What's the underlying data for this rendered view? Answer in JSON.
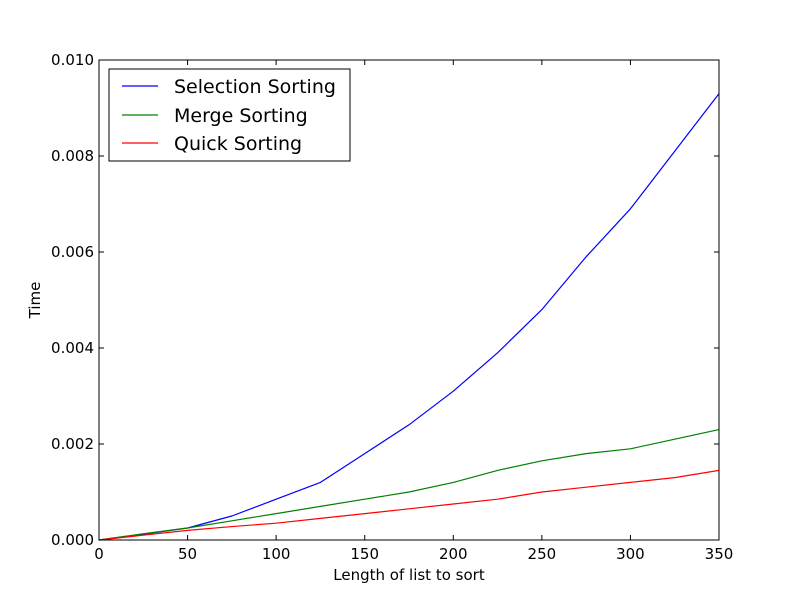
{
  "chart_data": {
    "type": "line",
    "title": "",
    "xlabel": "Length of list to sort",
    "ylabel": "Time",
    "xlim": [
      0,
      350
    ],
    "ylim": [
      0,
      0.01
    ],
    "grid": false,
    "legend_position": "top-left",
    "x_ticks": [
      "0",
      "50",
      "100",
      "150",
      "200",
      "250",
      "300",
      "350"
    ],
    "y_ticks": [
      "0.000",
      "0.002",
      "0.004",
      "0.006",
      "0.008",
      "0.010"
    ],
    "x": [
      0,
      25,
      50,
      75,
      100,
      125,
      150,
      175,
      200,
      225,
      250,
      275,
      300,
      325,
      350
    ],
    "series": [
      {
        "name": "Selection Sorting",
        "color": "#0000ff",
        "values": [
          0,
          0.00012,
          0.00025,
          0.0005,
          0.00085,
          0.0012,
          0.0018,
          0.0024,
          0.0031,
          0.0039,
          0.0048,
          0.0059,
          0.0069,
          0.0081,
          0.0093
        ]
      },
      {
        "name": "Merge Sorting",
        "color": "#008000",
        "values": [
          0,
          0.00013,
          0.00025,
          0.0004,
          0.00055,
          0.0007,
          0.00085,
          0.001,
          0.0012,
          0.00145,
          0.00165,
          0.0018,
          0.0019,
          0.0021,
          0.0023
        ]
      },
      {
        "name": "Quick Sorting",
        "color": "#ff0000",
        "values": [
          0,
          0.0001,
          0.0002,
          0.00028,
          0.00035,
          0.00045,
          0.00055,
          0.00065,
          0.00075,
          0.00085,
          0.001,
          0.0011,
          0.0012,
          0.0013,
          0.00145
        ]
      }
    ]
  }
}
